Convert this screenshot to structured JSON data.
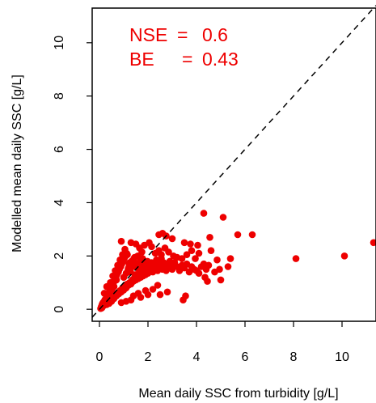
{
  "chart_data": {
    "type": "scatter",
    "xlabel": "Mean daily SSC from turbidity [g/L]",
    "ylabel": "Modelled mean daily SSC [g/L]",
    "xlim": [
      -0.3,
      11.4
    ],
    "ylim": [
      -0.45,
      11.3
    ],
    "xticks": [
      "0",
      "2",
      "4",
      "6",
      "8",
      "10"
    ],
    "xtick_values": [
      0,
      2,
      4,
      6,
      8,
      10
    ],
    "yticks": [
      "0",
      "2",
      "4",
      "6",
      "8",
      "10"
    ],
    "ytick_values": [
      0,
      2,
      4,
      6,
      8,
      10
    ],
    "reference_line": "1:1 (y = x), dashed",
    "grid": false,
    "annotations": [
      {
        "label": "NSE",
        "value": "0.6"
      },
      {
        "label": "BE",
        "value": "0.43"
      }
    ],
    "colors": {
      "points": "#ee0000",
      "annotation": "#ee0000",
      "axis": "#000000"
    },
    "series": [
      {
        "points": [
          [
            0.05,
            0.03
          ],
          [
            0.08,
            0.1
          ],
          [
            0.1,
            0.05
          ],
          [
            0.12,
            0.2
          ],
          [
            0.15,
            0.12
          ],
          [
            0.18,
            0.28
          ],
          [
            0.2,
            0.15
          ],
          [
            0.22,
            0.35
          ],
          [
            0.25,
            0.2
          ],
          [
            0.28,
            0.42
          ],
          [
            0.3,
            0.18
          ],
          [
            0.32,
            0.5
          ],
          [
            0.35,
            0.28
          ],
          [
            0.38,
            0.6
          ],
          [
            0.4,
            0.22
          ],
          [
            0.42,
            0.7
          ],
          [
            0.45,
            0.35
          ],
          [
            0.48,
            0.8
          ],
          [
            0.5,
            0.3
          ],
          [
            0.52,
            0.9
          ],
          [
            0.55,
            0.45
          ],
          [
            0.58,
            1.0
          ],
          [
            0.6,
            0.4
          ],
          [
            0.62,
            1.1
          ],
          [
            0.65,
            0.55
          ],
          [
            0.68,
            1.2
          ],
          [
            0.7,
            0.5
          ],
          [
            0.72,
            1.3
          ],
          [
            0.75,
            0.62
          ],
          [
            0.78,
            1.4
          ],
          [
            0.8,
            0.58
          ],
          [
            0.82,
            1.5
          ],
          [
            0.85,
            0.7
          ],
          [
            0.88,
            1.6
          ],
          [
            0.9,
            0.65
          ],
          [
            0.92,
            1.7
          ],
          [
            0.95,
            0.8
          ],
          [
            0.98,
            1.8
          ],
          [
            1.0,
            0.72
          ],
          [
            1.02,
            1.9
          ],
          [
            1.05,
            0.85
          ],
          [
            1.08,
            2.0
          ],
          [
            1.1,
            0.8
          ],
          [
            1.12,
            2.1
          ],
          [
            1.15,
            0.95
          ],
          [
            1.18,
            1.5
          ],
          [
            1.2,
            0.9
          ],
          [
            1.22,
            1.7
          ],
          [
            1.25,
            1.0
          ],
          [
            1.28,
            1.4
          ],
          [
            1.3,
            0.95
          ],
          [
            1.32,
            1.8
          ],
          [
            1.35,
            1.1
          ],
          [
            1.38,
            1.6
          ],
          [
            1.4,
            1.05
          ],
          [
            1.42,
            1.9
          ],
          [
            1.45,
            1.2
          ],
          [
            1.48,
            1.3
          ],
          [
            1.5,
            1.1
          ],
          [
            1.52,
            1.7
          ],
          [
            1.55,
            1.25
          ],
          [
            1.58,
            2.0
          ],
          [
            1.6,
            1.15
          ],
          [
            1.62,
            1.5
          ],
          [
            1.65,
            1.3
          ],
          [
            1.68,
            1.8
          ],
          [
            1.7,
            1.2
          ],
          [
            1.72,
            1.6
          ],
          [
            1.75,
            1.35
          ],
          [
            1.78,
            1.9
          ],
          [
            1.8,
            1.25
          ],
          [
            1.82,
            1.45
          ],
          [
            1.85,
            1.4
          ],
          [
            1.88,
            1.7
          ],
          [
            1.9,
            1.3
          ],
          [
            1.92,
            1.55
          ],
          [
            1.95,
            1.45
          ],
          [
            1.98,
            1.8
          ],
          [
            2.0,
            1.35
          ],
          [
            2.05,
            1.6
          ],
          [
            2.1,
            1.5
          ],
          [
            2.15,
            1.75
          ],
          [
            2.2,
            1.4
          ],
          [
            2.25,
            1.65
          ],
          [
            2.3,
            1.55
          ],
          [
            2.35,
            1.85
          ],
          [
            2.4,
            1.45
          ],
          [
            2.45,
            1.7
          ],
          [
            2.5,
            1.6
          ],
          [
            2.55,
            1.9
          ],
          [
            2.6,
            1.5
          ],
          [
            2.65,
            1.75
          ],
          [
            2.7,
            1.65
          ],
          [
            2.75,
            1.45
          ],
          [
            2.8,
            1.7
          ],
          [
            2.85,
            1.55
          ],
          [
            2.9,
            1.8
          ],
          [
            2.95,
            1.6
          ],
          [
            3.0,
            1.5
          ],
          [
            3.1,
            1.75
          ],
          [
            3.2,
            1.6
          ],
          [
            3.3,
            1.45
          ],
          [
            3.4,
            1.65
          ],
          [
            3.5,
            1.55
          ],
          [
            3.6,
            1.7
          ],
          [
            3.7,
            1.4
          ],
          [
            3.8,
            1.6
          ],
          [
            3.9,
            1.5
          ],
          [
            4.0,
            1.45
          ],
          [
            4.1,
            1.35
          ],
          [
            4.2,
            1.6
          ],
          [
            4.3,
            1.7
          ],
          [
            4.35,
            1.2
          ],
          [
            4.4,
            1.5
          ],
          [
            4.45,
            1.05
          ],
          [
            4.5,
            1.65
          ],
          [
            3.55,
            0.5
          ],
          [
            3.45,
            0.35
          ],
          [
            2.8,
            0.65
          ],
          [
            2.5,
            0.55
          ],
          [
            1.4,
            0.5
          ],
          [
            1.6,
            0.6
          ],
          [
            1.9,
            0.7
          ],
          [
            2.2,
            0.75
          ],
          [
            2.4,
            0.9
          ],
          [
            1.1,
            0.3
          ],
          [
            0.9,
            0.25
          ],
          [
            1.3,
            0.35
          ],
          [
            1.7,
            0.45
          ],
          [
            2.0,
            0.55
          ],
          [
            0.2,
            0.6
          ],
          [
            0.3,
            0.85
          ],
          [
            0.45,
            1.0
          ],
          [
            0.55,
            1.25
          ],
          [
            0.65,
            1.45
          ],
          [
            0.75,
            1.65
          ],
          [
            0.85,
            1.85
          ],
          [
            0.95,
            2.05
          ],
          [
            1.05,
            2.25
          ],
          [
            1.15,
            2.05
          ],
          [
            0.9,
            2.55
          ],
          [
            1.3,
            2.5
          ],
          [
            1.5,
            2.45
          ],
          [
            1.65,
            2.3
          ],
          [
            1.75,
            2.15
          ],
          [
            1.85,
            2.4
          ],
          [
            2.05,
            2.5
          ],
          [
            2.15,
            2.35
          ],
          [
            2.3,
            2.1
          ],
          [
            2.45,
            2.2
          ],
          [
            2.55,
            2.05
          ],
          [
            2.7,
            2.3
          ],
          [
            2.85,
            2.15
          ],
          [
            3.05,
            2.0
          ],
          [
            3.2,
            1.95
          ],
          [
            3.4,
            1.9
          ],
          [
            3.6,
            2.05
          ],
          [
            3.8,
            2.2
          ],
          [
            3.95,
            1.9
          ],
          [
            4.1,
            2.1
          ],
          [
            3.0,
            2.65
          ],
          [
            2.75,
            2.75
          ],
          [
            2.6,
            2.85
          ],
          [
            2.45,
            2.8
          ],
          [
            3.5,
            2.5
          ],
          [
            3.75,
            2.45
          ],
          [
            4.05,
            2.4
          ],
          [
            1.45,
            1.95
          ],
          [
            1.25,
            1.75
          ],
          [
            0.7,
            1.1
          ],
          [
            0.6,
            0.85
          ],
          [
            0.5,
            0.7
          ],
          [
            0.4,
            0.55
          ],
          [
            0.35,
            0.45
          ],
          [
            0.25,
            0.35
          ],
          [
            0.15,
            0.25
          ],
          [
            0.1,
            0.15
          ],
          [
            1.0,
            1.2
          ],
          [
            1.1,
            1.35
          ],
          [
            1.2,
            1.55
          ],
          [
            4.3,
            3.6
          ],
          [
            5.1,
            3.45
          ],
          [
            4.55,
            2.7
          ],
          [
            4.6,
            2.2
          ],
          [
            4.85,
            1.85
          ],
          [
            4.95,
            1.5
          ],
          [
            5.0,
            1.1
          ],
          [
            5.4,
            1.9
          ],
          [
            5.7,
            2.8
          ],
          [
            6.3,
            2.8
          ],
          [
            5.3,
            1.6
          ],
          [
            4.75,
            1.4
          ],
          [
            8.1,
            1.9
          ],
          [
            10.1,
            2.0
          ],
          [
            11.3,
            2.5
          ]
        ]
      }
    ]
  }
}
